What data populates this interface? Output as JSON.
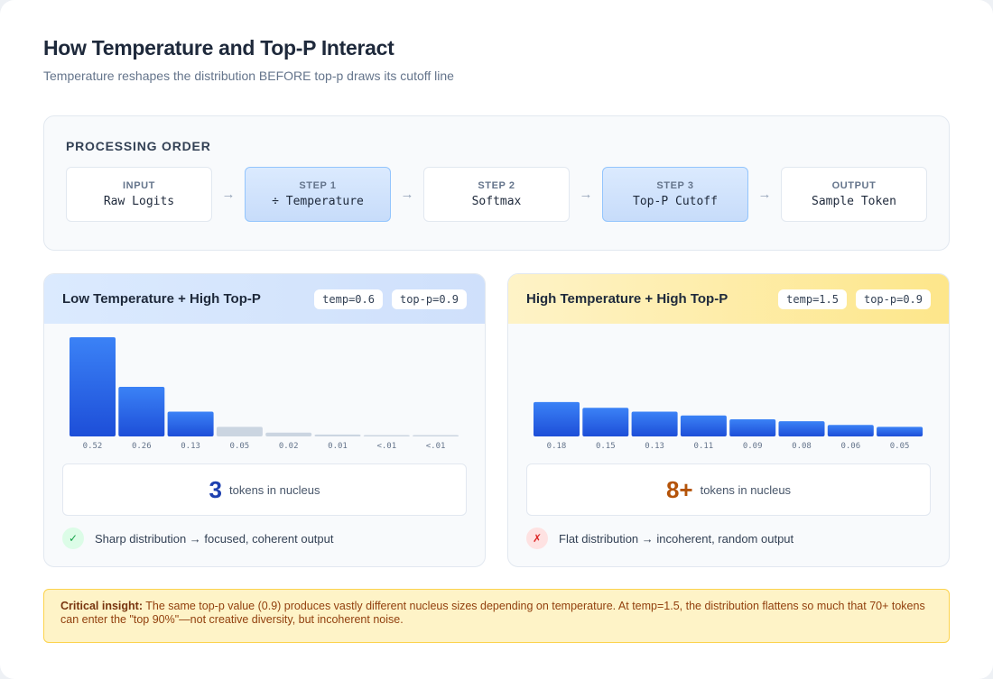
{
  "title": "How Temperature and Top-P Interact",
  "subtitle": "Temperature reshapes the distribution BEFORE top-p draws its cutoff line",
  "process": {
    "heading": "PROCESSING ORDER",
    "arrow": "→",
    "steps": [
      {
        "label": "INPUT",
        "name": "Raw Logits",
        "highlight": false
      },
      {
        "label": "STEP 1",
        "name": "÷ Temperature",
        "highlight": true
      },
      {
        "label": "STEP 2",
        "name": "Softmax",
        "highlight": false
      },
      {
        "label": "STEP 3",
        "name": "Top-P Cutoff",
        "highlight": true
      },
      {
        "label": "OUTPUT",
        "name": "Sample Token",
        "highlight": false
      }
    ]
  },
  "panels": [
    {
      "title": "Low Temperature + High Top-P",
      "temp_pill": "temp=0.6",
      "topp_pill": "top-p=0.9",
      "nucleus_count": "3",
      "nucleus_label": "tokens in nucleus",
      "verdict_icon": "✓",
      "verdict": "Sharp distribution → focused, coherent output"
    },
    {
      "title": "High Temperature + High Top-P",
      "temp_pill": "temp=1.5",
      "topp_pill": "top-p=0.9",
      "nucleus_count": "8+",
      "nucleus_label": "tokens in nucleus",
      "verdict_icon": "✗",
      "verdict": "Flat distribution → incoherent, random output"
    }
  ],
  "chart_data": [
    {
      "type": "bar",
      "categories": [
        "0.52",
        "0.26",
        "0.13",
        "0.05",
        "0.02",
        "0.01",
        "<.01",
        "<.01"
      ],
      "values": [
        0.52,
        0.26,
        0.13,
        0.05,
        0.02,
        0.01,
        0.005,
        0.003
      ],
      "in_nucleus": [
        true,
        true,
        true,
        false,
        false,
        false,
        false,
        false
      ],
      "ylim": [
        0,
        0.52
      ],
      "colors": {
        "nucleus": "#2563eb",
        "outside": "#cbd5e1"
      }
    },
    {
      "type": "bar",
      "categories": [
        "0.18",
        "0.15",
        "0.13",
        "0.11",
        "0.09",
        "0.08",
        "0.06",
        "0.05"
      ],
      "values": [
        0.18,
        0.15,
        0.13,
        0.11,
        0.09,
        0.08,
        0.06,
        0.05
      ],
      "in_nucleus": [
        true,
        true,
        true,
        true,
        true,
        true,
        true,
        true
      ],
      "ylim": [
        0,
        0.52
      ],
      "colors": {
        "nucleus": "#2563eb",
        "outside": "#cbd5e1"
      }
    }
  ],
  "insight": {
    "label": "Critical insight:",
    "text": " The same top-p value (0.9) produces vastly different nucleus sizes depending on temperature. At temp=1.5, the distribution flattens so much that 70+ tokens can enter the \"top 90%\"—not creative diversity, but incoherent noise."
  }
}
